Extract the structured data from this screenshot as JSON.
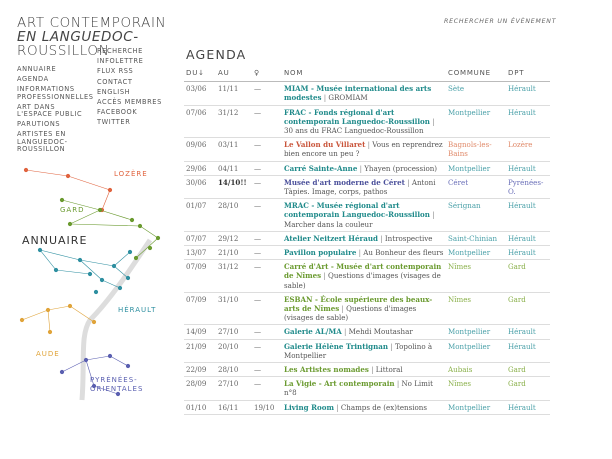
{
  "site": {
    "title_lines": [
      "ART CONTEMPORAIN",
      "EN LANGUEDOC-",
      "ROUSSILLON"
    ]
  },
  "search_label": "RECHERCHER UN ÉVÈNEMENT",
  "nav_left": [
    "ANNUAIRE",
    "AGENDA",
    "INFORMATIONS PROFESSIONNELLES",
    "ART DANS L'ESPACE PUBLIC",
    "PARUTIONS",
    "ARTISTES EN LANGUEDOC-ROUSSILLON"
  ],
  "nav_right": [
    "RECHERCHE",
    "INFOLETTRE",
    "FLUX RSS",
    "CONTACT",
    "ENGLISH",
    "ACCÈS MEMBRES",
    "FACEBOOK",
    "TWITTER"
  ],
  "map": {
    "regions": [
      "LOZÈRE",
      "GARD",
      "ANNUAIRE",
      "HÉRAULT",
      "AUDE",
      "PYRÉNÉES-",
      "ORIENTALES"
    ],
    "colors": {
      "lozere": "#e0633e",
      "gard": "#6a9a2f",
      "herault": "#2e8fa0",
      "aude": "#e0a43a",
      "pyrenees": "#5a5fb0",
      "annuaire": "#333333"
    }
  },
  "page_heading": "AGENDA",
  "table": {
    "headers": {
      "du": "DU↓",
      "au": "AU",
      "vern": "♀",
      "nom": "NOM",
      "commune": "COMMUNE",
      "dpt": "DPT"
    },
    "rows": [
      {
        "du": "03/06",
        "au": "11/11",
        "vern": "—",
        "venue": "MIAM - Musée international des arts modestes",
        "expo": "GROMIAM",
        "commune": "Sète",
        "dpt": "Hérault",
        "venue_color": "#1f8a8a",
        "commune_color": "#4aa0a8",
        "dpt_color": "#4aa0a8",
        "au_bold": false
      },
      {
        "du": "07/06",
        "au": "31/12",
        "vern": "—",
        "venue": "FRAC - Fonds régional d'art contemporain Languedoc-Roussillon",
        "expo": "30 ans du FRAC Languedoc-Roussillon",
        "commune": "Montpellier",
        "dpt": "Hérault",
        "venue_color": "#1f8a8a",
        "commune_color": "#4aa0a8",
        "dpt_color": "#4aa0a8",
        "au_bold": false
      },
      {
        "du": "09/06",
        "au": "03/11",
        "vern": "—",
        "venue": "Le Vallon du Villaret",
        "expo": "Vous en reprendrez bien encore un peu ?",
        "commune": "Bagnols-les-Bains",
        "dpt": "Lozère",
        "venue_color": "#c9543a",
        "commune_color": "#e08a6a",
        "dpt_color": "#e08a6a",
        "au_bold": false
      },
      {
        "du": "29/06",
        "au": "04/11",
        "vern": "—",
        "venue": "Carré Sainte-Anne",
        "expo": "Yhayen (procession)",
        "commune": "Montpellier",
        "dpt": "Hérault",
        "venue_color": "#1f8a8a",
        "commune_color": "#4aa0a8",
        "dpt_color": "#4aa0a8",
        "au_bold": false
      },
      {
        "du": "30/06",
        "au": "14/10!!",
        "vern": "—",
        "venue": "Musée d'art moderne de Céret",
        "expo": "Antoni Tàpies. Image, corps, pathos",
        "commune": "Céret",
        "dpt": "Pyrénées-O.",
        "venue_color": "#4a4f9a",
        "commune_color": "#6a6fb8",
        "dpt_color": "#6a6fb8",
        "au_bold": true
      },
      {
        "du": "01/07",
        "au": "28/10",
        "vern": "—",
        "venue": "MRAC - Musée régional d'art contemporain Languedoc-Roussillon",
        "expo": "Marcher dans la couleur",
        "commune": "Sérignan",
        "dpt": "Hérault",
        "venue_color": "#1f8a8a",
        "commune_color": "#4aa0a8",
        "dpt_color": "#4aa0a8",
        "au_bold": false
      },
      {
        "du": "07/07",
        "au": "29/12",
        "vern": "—",
        "venue": "Atelier Neitzert Héraud",
        "expo": "Introspective",
        "commune": "Saint-Chinian",
        "dpt": "Hérault",
        "venue_color": "#1f8a8a",
        "commune_color": "#4aa0a8",
        "dpt_color": "#4aa0a8",
        "au_bold": false
      },
      {
        "du": "13/07",
        "au": "21/10",
        "vern": "—",
        "venue": "Pavillon populaire",
        "expo": "Au Bonheur des fleurs",
        "commune": "Montpellier",
        "dpt": "Hérault",
        "venue_color": "#1f8a8a",
        "commune_color": "#4aa0a8",
        "dpt_color": "#4aa0a8",
        "au_bold": false
      },
      {
        "du": "07/09",
        "au": "31/12",
        "vern": "—",
        "venue": "Carré d'Art - Musée d'art contemporain de Nîmes",
        "expo": "Questions d'images (visages de sable)",
        "commune": "Nîmes",
        "dpt": "Gard",
        "venue_color": "#6a9a2f",
        "commune_color": "#8ab04a",
        "dpt_color": "#8ab04a",
        "au_bold": false
      },
      {
        "du": "07/09",
        "au": "31/10",
        "vern": "—",
        "venue": "ESBAN - École supérieure des beaux-arts de Nîmes",
        "expo": "Questions d'images (visages de sable)",
        "commune": "Nîmes",
        "dpt": "Gard",
        "venue_color": "#6a9a2f",
        "commune_color": "#8ab04a",
        "dpt_color": "#8ab04a",
        "au_bold": false
      },
      {
        "du": "14/09",
        "au": "27/10",
        "vern": "—",
        "venue": "Galerie AL/MA",
        "expo": "Mehdi Moutashar",
        "commune": "Montpellier",
        "dpt": "Hérault",
        "venue_color": "#1f8a8a",
        "commune_color": "#4aa0a8",
        "dpt_color": "#4aa0a8",
        "au_bold": false
      },
      {
        "du": "21/09",
        "au": "20/10",
        "vern": "—",
        "venue": "Galerie Hélène Trintignan",
        "expo": "Topolino à Montpellier",
        "commune": "Montpellier",
        "dpt": "Hérault",
        "venue_color": "#1f8a8a",
        "commune_color": "#4aa0a8",
        "dpt_color": "#4aa0a8",
        "au_bold": false
      },
      {
        "du": "22/09",
        "au": "28/10",
        "vern": "—",
        "venue": "Les Artistes nomades",
        "expo": "Littoral",
        "commune": "Aubais",
        "dpt": "Gard",
        "venue_color": "#6a9a2f",
        "commune_color": "#8ab04a",
        "dpt_color": "#8ab04a",
        "au_bold": false
      },
      {
        "du": "28/09",
        "au": "27/10",
        "vern": "—",
        "venue": "La Vigie - Art contemporain",
        "expo": "No Limit n°8",
        "commune": "Nîmes",
        "dpt": "Gard",
        "venue_color": "#6a9a2f",
        "commune_color": "#8ab04a",
        "dpt_color": "#8ab04a",
        "au_bold": false
      },
      {
        "du": "01/10",
        "au": "16/11",
        "vern": "19/10",
        "venue": "Living Room",
        "expo": "Champs de (ex)tensions",
        "commune": "Montpellier",
        "dpt": "Hérault",
        "venue_color": "#1f8a8a",
        "commune_color": "#4aa0a8",
        "dpt_color": "#4aa0a8",
        "au_bold": false
      }
    ]
  }
}
